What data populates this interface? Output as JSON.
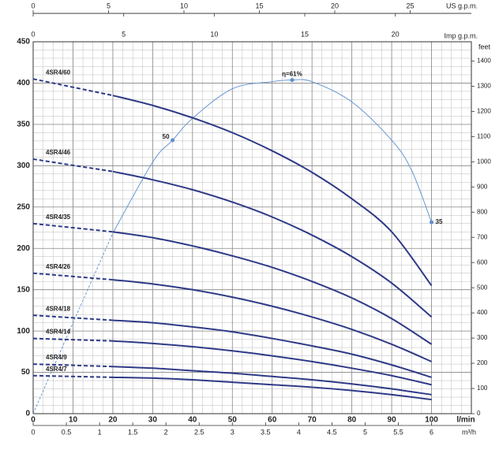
{
  "chart_data": {
    "type": "line",
    "x": [
      0,
      20,
      30,
      40,
      50,
      60,
      70,
      80,
      90,
      100
    ],
    "xlim": [
      0,
      110
    ],
    "xticks": [
      0,
      10,
      20,
      30,
      40,
      50,
      60,
      70,
      80,
      90,
      100
    ],
    "xlabel": "l/min",
    "ylim": [
      0,
      450
    ],
    "yticks": [
      0,
      50,
      100,
      150,
      200,
      250,
      300,
      350,
      400,
      450
    ],
    "grid": true,
    "series": [
      {
        "name": "4SR4/60",
        "color": "#2e3a87",
        "values": [
          405,
          385,
          373,
          358,
          340,
          318,
          292,
          260,
          220,
          155
        ]
      },
      {
        "name": "4SR4/46",
        "color": "#2e3a87",
        "values": [
          308,
          293,
          283,
          271,
          256,
          238,
          216,
          190,
          158,
          117
        ]
      },
      {
        "name": "4SR4/35",
        "color": "#2e3a87",
        "values": [
          230,
          220,
          213,
          203,
          191,
          177,
          160,
          140,
          115,
          84
        ]
      },
      {
        "name": "4SR4/26",
        "color": "#2e3a87",
        "values": [
          170,
          162,
          157,
          150,
          141,
          130,
          117,
          102,
          84,
          63
        ]
      },
      {
        "name": "4SR4/18",
        "color": "#2e3a87",
        "values": [
          119,
          113,
          110,
          105,
          99,
          91,
          82,
          72,
          59,
          44
        ]
      },
      {
        "name": "4SR4/14",
        "color": "#2e3a87",
        "values": [
          91,
          88,
          85,
          81,
          76,
          70,
          63,
          55,
          46,
          35
        ]
      },
      {
        "name": "4SR4/9",
        "color": "#2e3a87",
        "values": [
          60,
          57,
          55,
          52,
          49,
          45,
          41,
          36,
          30,
          23
        ]
      },
      {
        "name": "4SR4/7",
        "color": "#2e3a87",
        "values": [
          46,
          44,
          43,
          41,
          38,
          35,
          32,
          28,
          23,
          17
        ]
      }
    ],
    "efficiency": {
      "color": "#5b8fd0",
      "x": [
        0,
        10,
        20,
        30,
        35,
        40,
        50,
        60,
        65,
        70,
        80,
        90,
        95,
        100
      ],
      "values": [
        0,
        16.6,
        33,
        46,
        50,
        54,
        59.4,
        60.7,
        61,
        60.7,
        57,
        50,
        44.5,
        35
      ],
      "value_labels": [
        null,
        null,
        null,
        null,
        "50",
        null,
        null,
        null,
        "η=61%",
        null,
        null,
        null,
        null,
        "35"
      ],
      "ylim": [
        0,
        68
      ]
    },
    "m3h_axis": {
      "label": "m³/h",
      "xlim": [
        0,
        6.6
      ],
      "ticks": [
        0,
        0.5,
        1,
        1.5,
        2,
        2.5,
        3,
        3.5,
        4,
        4.5,
        5,
        5.5,
        6
      ]
    },
    "us_gpm_axis": {
      "label": "US g.p.m.",
      "xlim": [
        0,
        29.06
      ],
      "ticks": [
        0,
        5,
        10,
        15,
        20,
        25
      ]
    },
    "imp_gpm_axis": {
      "label": "Imp g.p.m.",
      "xlim": [
        0,
        24.2
      ],
      "ticks": [
        0,
        5,
        10,
        15,
        20
      ]
    },
    "feet_axis": {
      "label": "feet",
      "ylim": [
        0,
        1476.4
      ],
      "ticks": [
        0,
        100,
        200,
        300,
        400,
        500,
        600,
        700,
        800,
        900,
        1000,
        1100,
        1200,
        1300,
        1400
      ]
    }
  }
}
